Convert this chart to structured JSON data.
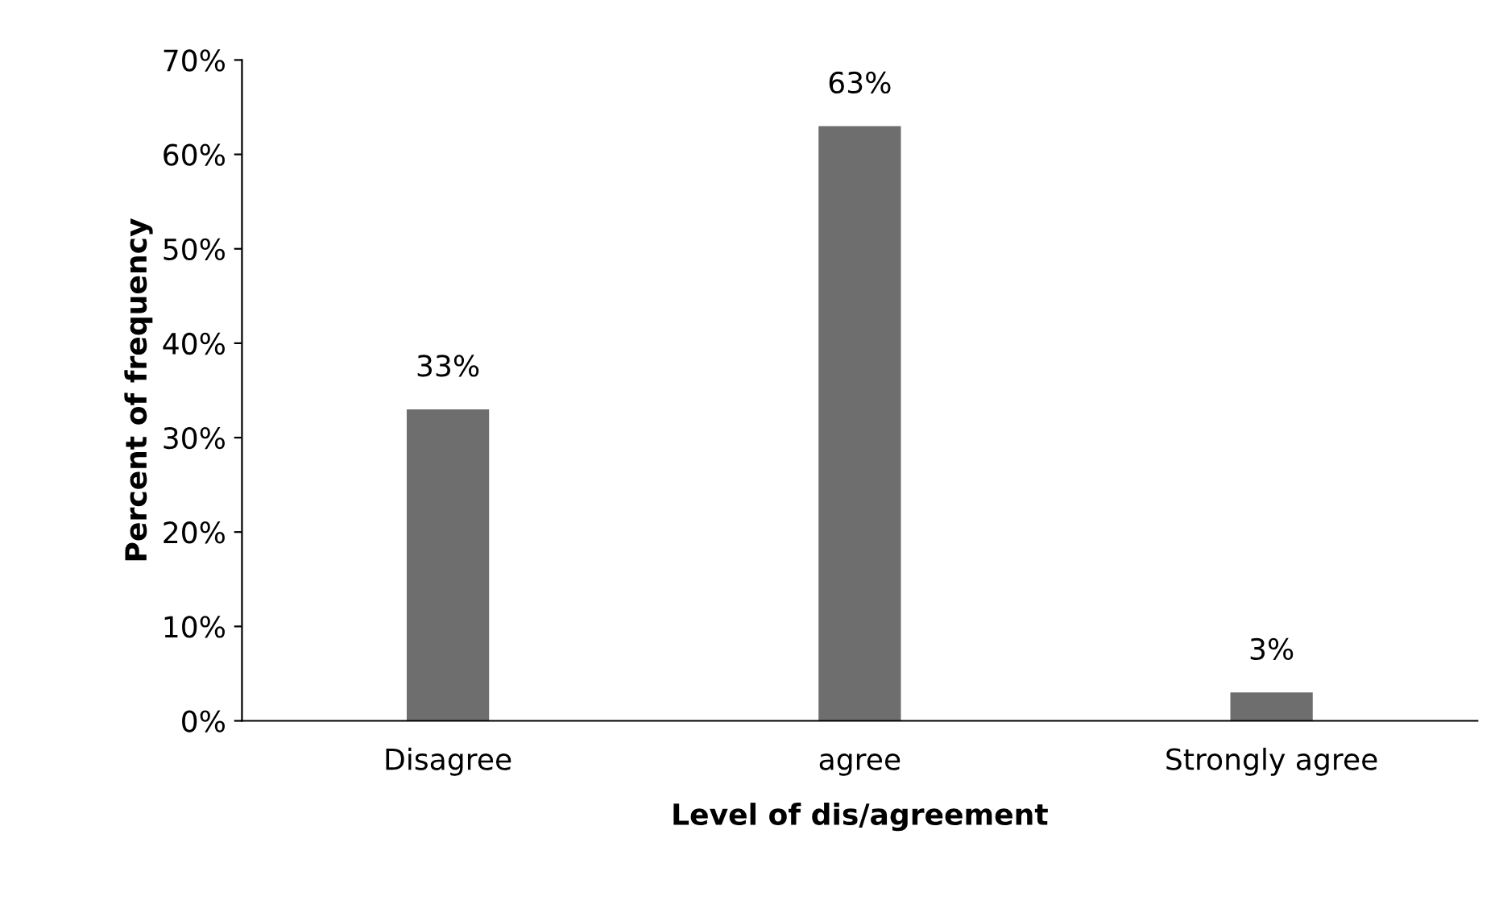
{
  "chart_data": {
    "type": "bar",
    "xlabel": "Level of dis/agreement",
    "ylabel": "Percent of frequency",
    "categories": [
      "Disagree",
      "agree",
      "Strongly agree"
    ],
    "values": [
      33,
      63,
      3
    ],
    "value_labels": [
      "33%",
      "63%",
      "3%"
    ],
    "color": "#6e6e6e",
    "ylim": [
      0,
      70
    ],
    "yticks": [
      {
        "value": 0,
        "label": "0%"
      },
      {
        "value": 10,
        "label": "10%"
      },
      {
        "value": 20,
        "label": "20%"
      },
      {
        "value": 30,
        "label": "30%"
      },
      {
        "value": 40,
        "label": "40%"
      },
      {
        "value": 50,
        "label": "50%"
      },
      {
        "value": 60,
        "label": "60%"
      },
      {
        "value": 70,
        "label": "70%"
      }
    ],
    "grid": false,
    "legend": false
  }
}
